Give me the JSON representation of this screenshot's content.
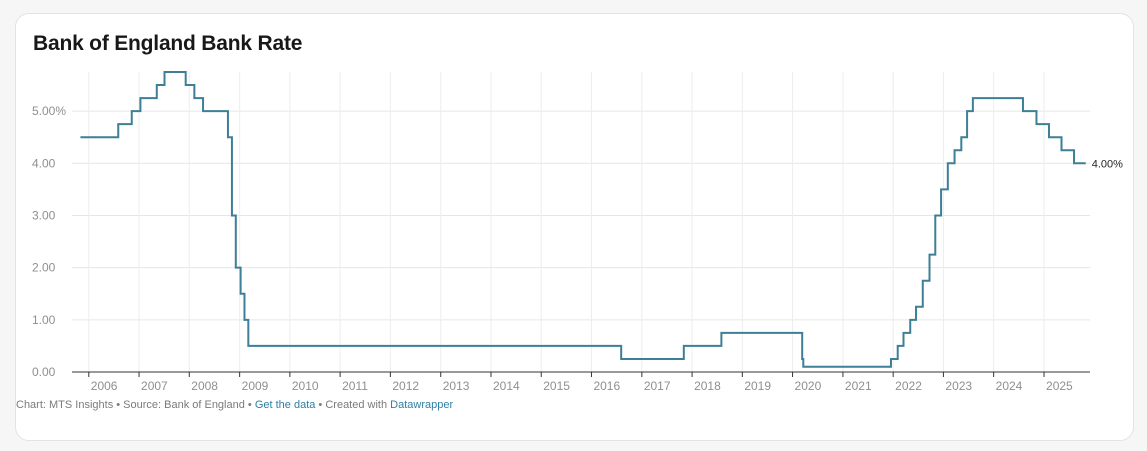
{
  "chart_data": {
    "type": "line",
    "title": "Bank of England Bank Rate",
    "xlabel": "",
    "ylabel": "",
    "ylim": [
      0,
      5.75
    ],
    "xlim": [
      "2005-09-01",
      "2025-12-01"
    ],
    "grid": true,
    "line_color": "#3d7f96",
    "y_ticks": [
      {
        "value": 0,
        "label": "0.00"
      },
      {
        "value": 1,
        "label": "1.00"
      },
      {
        "value": 2,
        "label": "2.00"
      },
      {
        "value": 3,
        "label": "3.00"
      },
      {
        "value": 4,
        "label": "4.00"
      },
      {
        "value": 5,
        "label": "5.00%"
      }
    ],
    "x_ticks": [
      "2006",
      "2007",
      "2008",
      "2009",
      "2010",
      "2011",
      "2012",
      "2013",
      "2014",
      "2015",
      "2016",
      "2017",
      "2018",
      "2019",
      "2020",
      "2021",
      "2022",
      "2023",
      "2024",
      "2025"
    ],
    "end_label": "4.00%",
    "series": [
      {
        "type": "step",
        "points": [
          [
            "2005-11-01",
            4.5
          ],
          [
            "2006-08-03",
            4.75
          ],
          [
            "2006-11-09",
            5.0
          ],
          [
            "2007-01-11",
            5.25
          ],
          [
            "2007-05-10",
            5.5
          ],
          [
            "2007-07-05",
            5.75
          ],
          [
            "2007-12-06",
            5.5
          ],
          [
            "2008-02-07",
            5.25
          ],
          [
            "2008-04-10",
            5.0
          ],
          [
            "2008-10-08",
            4.5
          ],
          [
            "2008-11-06",
            3.0
          ],
          [
            "2008-12-04",
            2.0
          ],
          [
            "2009-01-08",
            1.5
          ],
          [
            "2009-02-05",
            1.0
          ],
          [
            "2009-03-05",
            0.5
          ],
          [
            "2016-08-04",
            0.25
          ],
          [
            "2017-11-02",
            0.5
          ],
          [
            "2018-08-02",
            0.75
          ],
          [
            "2020-03-11",
            0.25
          ],
          [
            "2020-03-19",
            0.1
          ],
          [
            "2021-12-16",
            0.25
          ],
          [
            "2022-02-03",
            0.5
          ],
          [
            "2022-03-17",
            0.75
          ],
          [
            "2022-05-05",
            1.0
          ],
          [
            "2022-06-16",
            1.25
          ],
          [
            "2022-08-04",
            1.75
          ],
          [
            "2022-09-22",
            2.25
          ],
          [
            "2022-11-03",
            3.0
          ],
          [
            "2022-12-15",
            3.5
          ],
          [
            "2023-02-02",
            4.0
          ],
          [
            "2023-03-23",
            4.25
          ],
          [
            "2023-05-11",
            4.5
          ],
          [
            "2023-06-22",
            5.0
          ],
          [
            "2023-08-03",
            5.25
          ],
          [
            "2024-08-01",
            5.0
          ],
          [
            "2024-11-07",
            4.75
          ],
          [
            "2025-02-06",
            4.5
          ],
          [
            "2025-05-08",
            4.25
          ],
          [
            "2025-08-07",
            4.0
          ],
          [
            "2025-10-31",
            4.0
          ]
        ]
      }
    ]
  },
  "footer": {
    "prefix": "Chart: MTS Insights • Source: Bank of England • ",
    "get_data": "Get the data",
    "middle": " • Created with ",
    "datawrapper": "Datawrapper"
  }
}
